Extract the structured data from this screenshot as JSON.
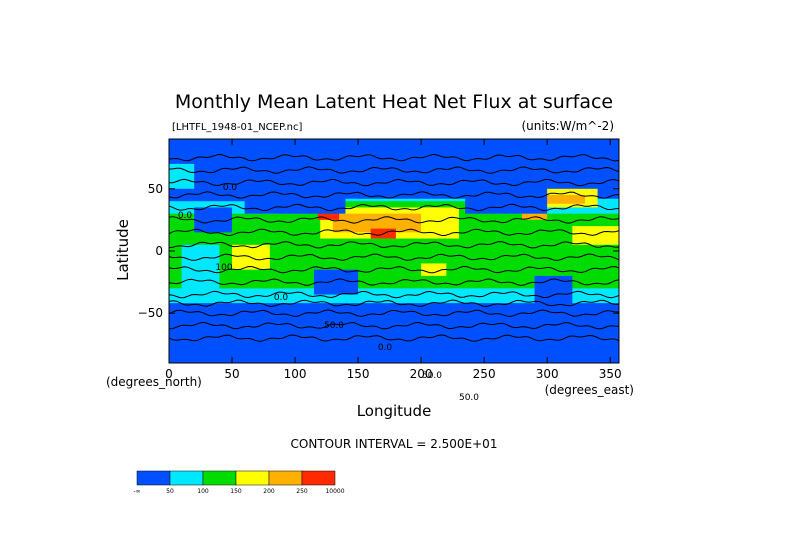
{
  "chart_data": {
    "type": "heatmap",
    "title": "Monthly Mean Latent Heat Net Flux at surface",
    "dataset": "[LHTFL_1948-01_NCEP.nc]",
    "units": "(units:W/m^-2)",
    "xlabel": "Longitude",
    "ylabel": "Latitude",
    "x_unit": "(degrees_east)",
    "y_unit": "(degrees_north)",
    "xlim": [
      0,
      357
    ],
    "ylim": [
      -90,
      90
    ],
    "x_ticks": [
      0,
      50,
      100,
      150,
      200,
      250,
      300,
      350
    ],
    "y_ticks": [
      -50,
      0,
      50
    ],
    "contour_interval": "CONTOUR INTERVAL = 2.500E+01",
    "contour_labels": [
      "0.0",
      "0.0",
      "100",
      "0.0",
      "50.0",
      "0.0",
      "50.0",
      "50.0"
    ],
    "legend": {
      "position": "bottom-left",
      "bins": [
        {
          "label": "-∞",
          "color": "#0050ff"
        },
        {
          "label": "50",
          "color": "#00e8ff"
        },
        {
          "label": "100",
          "color": "#00dc00"
        },
        {
          "label": "150",
          "color": "#ffff00"
        },
        {
          "label": "200",
          "color": "#ffb000"
        },
        {
          "label": "250",
          "color": "#ff2a00"
        },
        {
          "label": "10000",
          "color": ""
        }
      ]
    },
    "regions": [
      {
        "lon": [
          0,
          357
        ],
        "lat": [
          -90,
          90
        ],
        "value": 25
      },
      {
        "lon": [
          0,
          357
        ],
        "lat": [
          -42,
          42
        ],
        "value": 60
      },
      {
        "lon": [
          0,
          357
        ],
        "lat": [
          -30,
          30
        ],
        "value": 110
      },
      {
        "lon": [
          40,
          100
        ],
        "lat": [
          -30,
          20
        ],
        "value": 120
      },
      {
        "lon": [
          110,
          260
        ],
        "lat": [
          5,
          40
        ],
        "value": 140
      },
      {
        "lon": [
          120,
          230
        ],
        "lat": [
          10,
          35
        ],
        "value": 175
      },
      {
        "lon": [
          130,
          200
        ],
        "lat": [
          15,
          30
        ],
        "value": 210
      },
      {
        "lon": [
          118,
          135
        ],
        "lat": [
          25,
          38
        ],
        "value": 260
      },
      {
        "lon": [
          160,
          180
        ],
        "lat": [
          10,
          18
        ],
        "value": 260
      },
      {
        "lon": [
          280,
          300
        ],
        "lat": [
          25,
          40
        ],
        "value": 230
      },
      {
        "lon": [
          290,
          340
        ],
        "lat": [
          35,
          50
        ],
        "value": 175
      },
      {
        "lon": [
          300,
          330
        ],
        "lat": [
          38,
          45
        ],
        "value": 230
      },
      {
        "lon": [
          320,
          357
        ],
        "lat": [
          5,
          20
        ],
        "value": 170
      },
      {
        "lon": [
          50,
          80
        ],
        "lat": [
          -15,
          5
        ],
        "value": 150
      },
      {
        "lon": [
          200,
          220
        ],
        "lat": [
          -20,
          -10
        ],
        "value": 160
      },
      {
        "lon": [
          0,
          357
        ],
        "lat": [
          -52,
          -42
        ],
        "value": 40
      },
      {
        "lon": [
          0,
          357
        ],
        "lat": [
          -90,
          -60
        ],
        "value": 10
      },
      {
        "lon": [
          0,
          357
        ],
        "lat": [
          60,
          90
        ],
        "value": 10
      },
      {
        "lon": [
          0,
          60
        ],
        "lat": [
          40,
          75
        ],
        "value": 20
      },
      {
        "lon": [
          60,
          140
        ],
        "lat": [
          30,
          75
        ],
        "value": 15
      },
      {
        "lon": [
          20,
          50
        ],
        "lat": [
          15,
          35
        ],
        "value": 20
      },
      {
        "lon": [
          115,
          150
        ],
        "lat": [
          -35,
          -15
        ],
        "value": 30
      },
      {
        "lon": [
          235,
          300
        ],
        "lat": [
          30,
          70
        ],
        "value": 30
      },
      {
        "lon": [
          290,
          320
        ],
        "lat": [
          -20,
          5
        ],
        "value": 130
      },
      {
        "lon": [
          290,
          320
        ],
        "lat": [
          -55,
          -20
        ],
        "value": 40
      },
      {
        "lon": [
          10,
          40
        ],
        "lat": [
          -35,
          5
        ],
        "value": 80
      },
      {
        "lon": [
          0,
          20
        ],
        "lat": [
          50,
          70
        ],
        "value": 60
      }
    ]
  }
}
